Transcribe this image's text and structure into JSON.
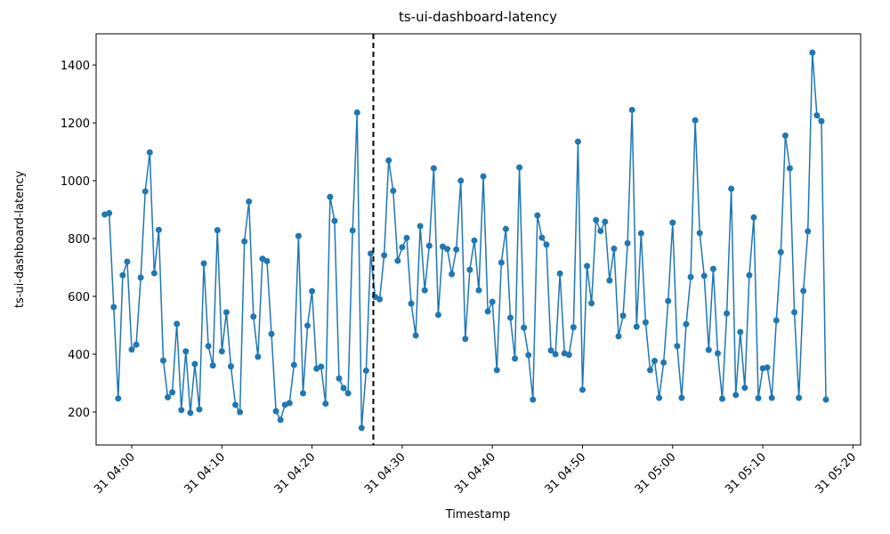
{
  "chart_data": {
    "type": "line",
    "title": "ts-ui-dashboard-latency",
    "x_label": "Timestamp",
    "y_label": "ts-ui-dashboard-latency",
    "x": [
      -3,
      -2.5,
      -2,
      -1.5,
      -1,
      -0.5,
      0,
      0.5,
      1,
      1.5,
      2,
      2.5,
      3,
      3.5,
      4,
      4.5,
      5,
      5.5,
      6,
      6.5,
      7,
      7.5,
      8,
      8.5,
      9,
      9.5,
      10,
      10.5,
      11,
      11.5,
      12,
      12.5,
      13,
      13.5,
      14,
      14.5,
      15,
      15.5,
      16,
      16.5,
      17,
      17.5,
      18,
      18.5,
      19,
      19.5,
      20,
      20.5,
      21,
      21.5,
      22,
      22.5,
      23,
      23.5,
      24,
      24.5,
      25,
      25.5,
      26,
      26.5,
      27,
      27.5,
      28,
      28.5,
      29,
      29.5,
      30,
      30.5,
      31,
      31.5,
      32,
      32.5,
      33,
      33.5,
      34,
      34.5,
      35,
      35.5,
      36,
      36.5,
      37,
      37.5,
      38,
      38.5,
      39,
      39.5,
      40,
      40.5,
      41,
      41.5,
      42,
      42.5,
      43,
      43.5,
      44,
      44.5,
      45,
      45.5,
      46,
      46.5,
      47,
      47.5,
      48,
      48.5,
      49,
      49.5,
      50,
      50.5,
      51,
      51.5,
      52,
      52.5,
      53,
      53.5,
      54,
      54.5,
      55,
      55.5,
      56,
      56.5,
      57,
      57.5,
      58,
      58.5,
      59,
      59.5,
      60,
      60.5,
      61,
      61.5,
      62,
      62.5,
      63,
      63.5,
      64,
      64.5,
      65,
      65.5,
      66,
      66.5,
      67,
      67.5,
      68,
      68.5,
      69,
      69.5,
      70,
      70.5,
      71,
      71.5,
      72,
      72.5,
      73,
      73.5,
      74,
      74.5,
      75,
      75.5,
      76,
      76.5,
      77
    ],
    "series": [
      {
        "color": "#1f77b4",
        "values": [
          883,
          888,
          563,
          247,
          673,
          720,
          416,
          433,
          665,
          963,
          1098,
          680,
          830,
          378,
          251,
          268,
          505,
          207,
          410,
          197,
          366,
          209,
          714,
          428,
          361,
          829,
          410,
          545,
          358,
          225,
          200,
          790,
          928,
          530,
          391,
          730,
          722,
          470,
          203,
          173,
          225,
          231,
          363,
          809,
          265,
          499,
          618,
          350,
          357,
          229,
          944,
          861,
          316,
          283,
          265,
          828,
          1236,
          145,
          343,
          748,
          598,
          590,
          742,
          1070,
          965,
          723,
          770,
          802,
          575,
          465,
          843,
          621,
          775,
          1043,
          536,
          772,
          764,
          677,
          762,
          1000,
          453,
          692,
          793,
          621,
          1015,
          548,
          581,
          345,
          717,
          833,
          526,
          385,
          1046,
          492,
          397,
          243,
          880,
          803,
          779,
          413,
          400,
          679,
          403,
          398,
          493,
          1135,
          277,
          705,
          576,
          864,
          826,
          858,
          655,
          765,
          462,
          533,
          784,
          1245,
          495,
          818,
          510,
          345,
          377,
          249,
          371,
          584,
          855,
          428,
          249,
          504,
          667,
          1209,
          819,
          671,
          415,
          695,
          403,
          246,
          541,
          972,
          259,
          477,
          284,
          673,
          873,
          248,
          351,
          354,
          249,
          517,
          753,
          1156,
          1043,
          545,
          249,
          619,
          825,
          1443,
          1226,
          1206,
          243
        ]
      }
    ],
    "xlim": [
      -3.95,
      80.85
    ],
    "xticks": [
      {
        "value": 0,
        "label": "31 04:00"
      },
      {
        "value": 10,
        "label": "31 04:10"
      },
      {
        "value": 20,
        "label": "31 04:20"
      },
      {
        "value": 30,
        "label": "31 04:30"
      },
      {
        "value": 40,
        "label": "31 04:40"
      },
      {
        "value": 50,
        "label": "31 04:50"
      },
      {
        "value": 60,
        "label": "31 05:00"
      },
      {
        "value": 70,
        "label": "31 05:10"
      },
      {
        "value": 80,
        "label": "31 05:20"
      }
    ],
    "ylim": [
      86,
      1508
    ],
    "yticks": [
      200,
      400,
      600,
      800,
      1000,
      1200,
      1400
    ],
    "vline_x": 26.8,
    "vline_color": "#000000",
    "grid": false
  }
}
